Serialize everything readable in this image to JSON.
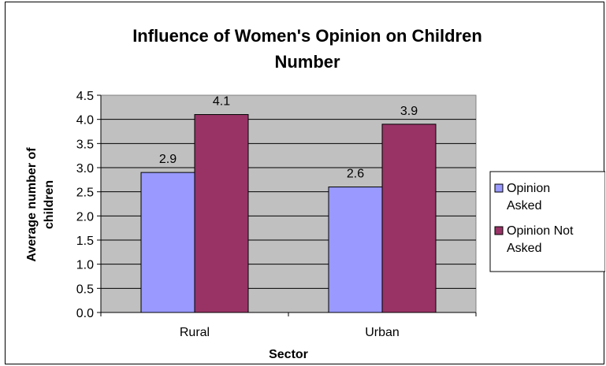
{
  "chart_data": {
    "type": "bar",
    "title": [
      "Influence of Women's Opinion on Children",
      "Number"
    ],
    "xlabel": "Sector",
    "ylabel": [
      "Average number of",
      "children"
    ],
    "categories": [
      "Rural",
      "Urban"
    ],
    "series": [
      {
        "name": "Opinion Asked",
        "legend_lines": [
          "Opinion",
          "Asked"
        ],
        "values": [
          2.9,
          2.6
        ],
        "labels": [
          "2.9",
          "2.6"
        ],
        "color": "#9999ff"
      },
      {
        "name": "Opinion Not Asked",
        "legend_lines": [
          "Opinion Not",
          "Asked"
        ],
        "values": [
          4.1,
          3.9
        ],
        "labels": [
          "4.1",
          "3.9"
        ],
        "color": "#993366"
      }
    ],
    "ylim": [
      0,
      4.5
    ],
    "yticks": [
      "0.0",
      "0.5",
      "1.0",
      "1.5",
      "2.0",
      "2.5",
      "3.0",
      "3.5",
      "4.0",
      "4.5"
    ],
    "grid": true,
    "plot_background": "#c0c0c0",
    "legend_position": "right"
  }
}
